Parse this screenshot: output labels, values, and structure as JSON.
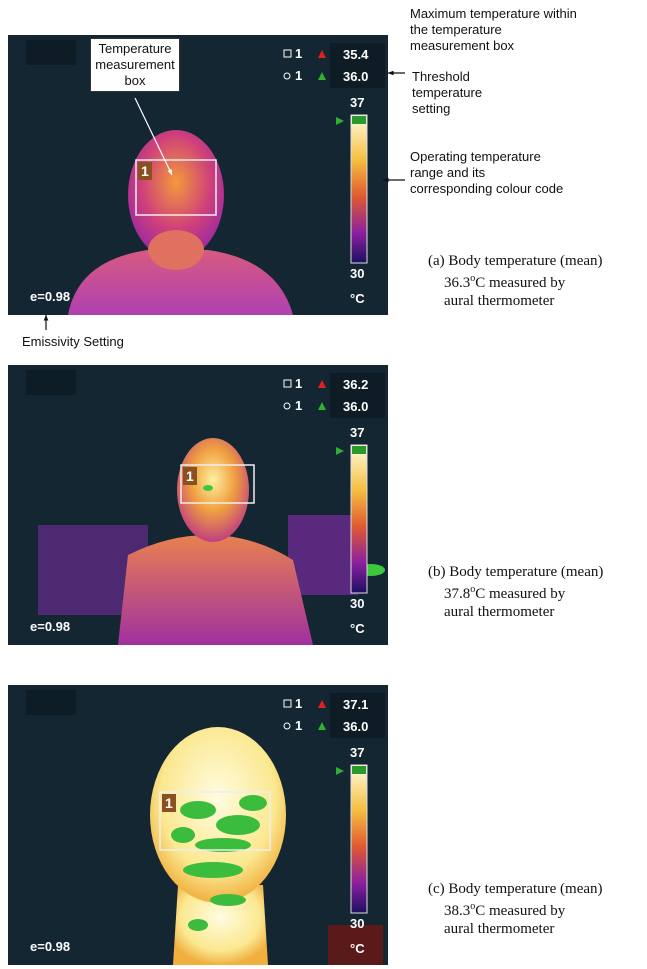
{
  "annotations": {
    "max_temp": "Maximum temperature within the temperature measurement box",
    "threshold": "Threshold temperature setting",
    "range": "Operating temperature range and its corresponding colour code",
    "emissivity": "Emissivity Setting",
    "box": "Temperature measurement box"
  },
  "panels": [
    {
      "box_id": "1",
      "max_id": "1",
      "max_temp": "35.4",
      "threshold_id": "1",
      "threshold": "36.0",
      "scale_max": "37",
      "scale_min": "30",
      "unit": "°C",
      "emissivity": "e=0.98",
      "caption": {
        "label": "(a) Body temperature (mean)",
        "value": "36.3",
        "degree": "o",
        "text": "C measured by",
        "line3": "aural thermometer"
      }
    },
    {
      "box_id": "1",
      "max_id": "1",
      "max_temp": "36.2",
      "threshold_id": "1",
      "threshold": "36.0",
      "scale_max": "37",
      "scale_min": "30",
      "unit": "°C",
      "emissivity": "e=0.98",
      "caption": {
        "label": "(b) Body temperature (mean)",
        "value": "37.8",
        "degree": "o",
        "text": "C measured by",
        "line3": "aural thermometer"
      }
    },
    {
      "box_id": "1",
      "max_id": "1",
      "max_temp": "37.1",
      "threshold_id": "1",
      "threshold": "36.0",
      "scale_max": "37",
      "scale_min": "30",
      "unit": "°C",
      "emissivity": "e=0.98",
      "caption": {
        "label": "(c) Body temperature (mean)",
        "value": "38.3",
        "degree": "o",
        "text": "C measured by",
        "line3": "aural thermometer"
      }
    }
  ]
}
